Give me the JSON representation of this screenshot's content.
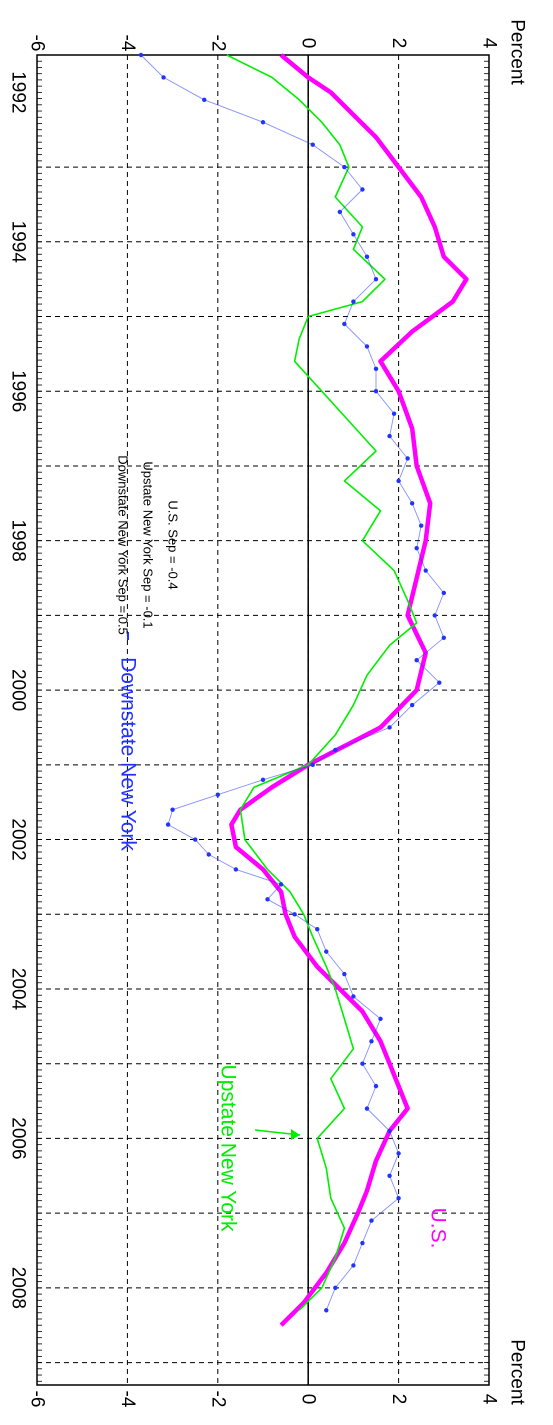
{
  "chart_data": {
    "type": "line",
    "orientation": "rotated-90-clockwise",
    "x_unit": "year",
    "xlim": [
      1991.5,
      2009.3
    ],
    "ylim": [
      -6,
      4
    ],
    "y_ticks": [
      -6,
      -4,
      -2,
      0,
      2,
      4
    ],
    "x_ticks": [
      1992,
      1994,
      1996,
      1998,
      2000,
      2002,
      2004,
      2006,
      2008
    ],
    "axis_label_top": "Percent",
    "axis_label_bottom": "Percent",
    "grid": true,
    "zero_line": true,
    "series": [
      {
        "name": "U.S.",
        "color": "#ff00ff",
        "style": "thick-line",
        "points": [
          [
            1991.5,
            -0.6
          ],
          [
            1991.8,
            0.0
          ],
          [
            1992.0,
            0.5
          ],
          [
            1992.3,
            1.0
          ],
          [
            1992.6,
            1.5
          ],
          [
            1993.0,
            2.0
          ],
          [
            1993.4,
            2.5
          ],
          [
            1993.8,
            2.8
          ],
          [
            1994.2,
            3.0
          ],
          [
            1994.5,
            3.5
          ],
          [
            1994.8,
            3.2
          ],
          [
            1995.2,
            2.3
          ],
          [
            1995.6,
            1.6
          ],
          [
            1996.0,
            2.0
          ],
          [
            1996.5,
            2.3
          ],
          [
            1997.0,
            2.4
          ],
          [
            1997.5,
            2.7
          ],
          [
            1998.0,
            2.6
          ],
          [
            1998.5,
            2.4
          ],
          [
            1999.0,
            2.2
          ],
          [
            1999.5,
            2.6
          ],
          [
            2000.0,
            2.4
          ],
          [
            2000.5,
            1.6
          ],
          [
            2001.0,
            0.0
          ],
          [
            2001.3,
            -0.8
          ],
          [
            2001.6,
            -1.5
          ],
          [
            2001.8,
            -1.7
          ],
          [
            2002.1,
            -1.6
          ],
          [
            2002.4,
            -1.0
          ],
          [
            2002.7,
            -0.6
          ],
          [
            2003.0,
            -0.5
          ],
          [
            2003.3,
            -0.3
          ],
          [
            2003.7,
            0.2
          ],
          [
            2004.0,
            0.7
          ],
          [
            2004.3,
            1.2
          ],
          [
            2004.7,
            1.6
          ],
          [
            2005.0,
            1.8
          ],
          [
            2005.3,
            2.0
          ],
          [
            2005.6,
            2.2
          ],
          [
            2005.9,
            1.8
          ],
          [
            2006.3,
            1.5
          ],
          [
            2006.7,
            1.3
          ],
          [
            2007.0,
            1.1
          ],
          [
            2007.4,
            0.8
          ],
          [
            2007.8,
            0.4
          ],
          [
            2008.2,
            -0.1
          ],
          [
            2008.5,
            -0.6
          ]
        ]
      },
      {
        "name": "Upstate New York",
        "color": "#00ee00",
        "style": "thin-line",
        "points": [
          [
            1991.5,
            -1.8
          ],
          [
            1991.8,
            -0.8
          ],
          [
            1992.1,
            -0.2
          ],
          [
            1992.4,
            0.3
          ],
          [
            1992.7,
            0.7
          ],
          [
            1993.0,
            0.9
          ],
          [
            1993.4,
            0.6
          ],
          [
            1993.8,
            1.2
          ],
          [
            1994.1,
            1.0
          ],
          [
            1994.5,
            1.7
          ],
          [
            1994.8,
            1.2
          ],
          [
            1995.0,
            0.0
          ],
          [
            1995.3,
            -0.2
          ],
          [
            1995.6,
            -0.3
          ],
          [
            1996.0,
            0.3
          ],
          [
            1996.4,
            0.9
          ],
          [
            1996.8,
            1.5
          ],
          [
            1997.2,
            0.8
          ],
          [
            1997.6,
            1.6
          ],
          [
            1998.0,
            1.2
          ],
          [
            1998.4,
            1.9
          ],
          [
            1998.8,
            2.2
          ],
          [
            1999.1,
            2.4
          ],
          [
            1999.4,
            1.8
          ],
          [
            1999.8,
            1.3
          ],
          [
            2000.2,
            1.0
          ],
          [
            2000.6,
            0.6
          ],
          [
            2001.0,
            0.0
          ],
          [
            2001.3,
            -1.2
          ],
          [
            2001.6,
            -1.5
          ],
          [
            2002.0,
            -1.4
          ],
          [
            2002.4,
            -0.9
          ],
          [
            2002.7,
            -0.4
          ],
          [
            2003.0,
            -0.1
          ],
          [
            2003.3,
            0.1
          ],
          [
            2003.7,
            0.4
          ],
          [
            2004.0,
            0.6
          ],
          [
            2004.4,
            0.8
          ],
          [
            2004.8,
            1.0
          ],
          [
            2005.2,
            0.5
          ],
          [
            2005.6,
            0.8
          ],
          [
            2006.0,
            0.2
          ],
          [
            2006.4,
            0.4
          ],
          [
            2006.8,
            0.5
          ],
          [
            2007.2,
            0.8
          ],
          [
            2007.6,
            0.6
          ],
          [
            2008.0,
            0.3
          ],
          [
            2008.3,
            -0.2
          ]
        ]
      },
      {
        "name": "Downstate New York",
        "color": "#2233ff",
        "style": "thin-line-with-markers",
        "points": [
          [
            1991.5,
            -3.7
          ],
          [
            1991.8,
            -3.2
          ],
          [
            1992.1,
            -2.3
          ],
          [
            1992.4,
            -1.0
          ],
          [
            1992.7,
            0.1
          ],
          [
            1993.0,
            0.8
          ],
          [
            1993.3,
            1.2
          ],
          [
            1993.6,
            0.7
          ],
          [
            1993.9,
            1.0
          ],
          [
            1994.2,
            1.3
          ],
          [
            1994.5,
            1.5
          ],
          [
            1994.8,
            1.0
          ],
          [
            1995.1,
            0.8
          ],
          [
            1995.4,
            1.3
          ],
          [
            1995.7,
            1.5
          ],
          [
            1996.0,
            1.5
          ],
          [
            1996.3,
            1.9
          ],
          [
            1996.6,
            1.8
          ],
          [
            1996.9,
            2.2
          ],
          [
            1997.2,
            2.0
          ],
          [
            1997.5,
            2.3
          ],
          [
            1997.8,
            2.5
          ],
          [
            1998.1,
            2.4
          ],
          [
            1998.4,
            2.6
          ],
          [
            1998.7,
            3.0
          ],
          [
            1999.0,
            2.8
          ],
          [
            1999.3,
            3.0
          ],
          [
            1999.6,
            2.4
          ],
          [
            1999.9,
            2.9
          ],
          [
            2000.2,
            2.3
          ],
          [
            2000.5,
            1.8
          ],
          [
            2000.8,
            0.6
          ],
          [
            2001.0,
            0.1
          ],
          [
            2001.2,
            -1.0
          ],
          [
            2001.4,
            -2.0
          ],
          [
            2001.6,
            -3.0
          ],
          [
            2001.8,
            -3.1
          ],
          [
            2002.0,
            -2.5
          ],
          [
            2002.2,
            -2.2
          ],
          [
            2002.4,
            -1.6
          ],
          [
            2002.6,
            -0.6
          ],
          [
            2002.8,
            -0.9
          ],
          [
            2003.0,
            -0.3
          ],
          [
            2003.2,
            0.2
          ],
          [
            2003.5,
            0.4
          ],
          [
            2003.8,
            0.8
          ],
          [
            2004.1,
            1.0
          ],
          [
            2004.4,
            1.6
          ],
          [
            2004.7,
            1.4
          ],
          [
            2005.0,
            1.2
          ],
          [
            2005.3,
            1.5
          ],
          [
            2005.6,
            1.3
          ],
          [
            2005.9,
            1.8
          ],
          [
            2006.2,
            2.0
          ],
          [
            2006.5,
            1.8
          ],
          [
            2006.8,
            2.0
          ],
          [
            2007.1,
            1.4
          ],
          [
            2007.4,
            1.2
          ],
          [
            2007.7,
            1.0
          ],
          [
            2008.0,
            0.6
          ],
          [
            2008.3,
            0.4
          ]
        ]
      }
    ],
    "sep_annotations": [
      {
        "text": "U.S.   Sep = -0.4"
      },
      {
        "text": "Upstate New York   Sep = -0.1"
      },
      {
        "text": "Downstate New York   Sep =  0.5"
      }
    ]
  }
}
